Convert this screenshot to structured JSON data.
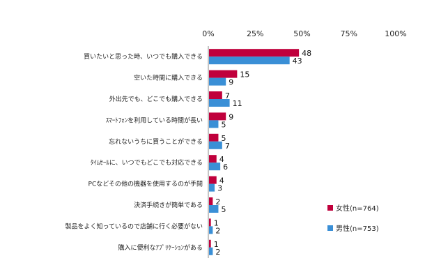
{
  "chart_data": {
    "type": "bar",
    "orientation": "horizontal",
    "title": "",
    "xlabel": "",
    "ylabel": "",
    "xlim": [
      0,
      100
    ],
    "ticks": [
      "0%",
      "25%",
      "50%",
      "75%",
      "100%"
    ],
    "tick_values": [
      0,
      25,
      50,
      75,
      100
    ],
    "grid": false,
    "legend_position": "bottom-right",
    "categories": [
      "買いたいと思った時、いつでも購入できる",
      "空いた時間に購入できる",
      "外出先でも、どこでも購入できる",
      "ｽﾏｰﾄﾌｫﾝを利用している時間が長い",
      "忘れないうちに買うことができる",
      "ﾀｲﾑｾｰﾙに、いつでもどこでも対応できる",
      "PCなどその他の機器を使用するのが手間",
      "決済手続きが簡単である",
      "製品をよく知っているので店舗に行く必要がない",
      "購入に便利なｱﾌﾟﾘｹｰｼｮﾝがある"
    ],
    "series": [
      {
        "name": "女性(n=764)",
        "color": "#c0003c",
        "values": [
          48,
          15,
          7,
          9,
          5,
          4,
          4,
          2,
          1,
          1
        ]
      },
      {
        "name": "男性(n=753)",
        "color": "#3a8fd6",
        "values": [
          43,
          9,
          11,
          5,
          7,
          6,
          3,
          5,
          2,
          2
        ]
      }
    ]
  }
}
